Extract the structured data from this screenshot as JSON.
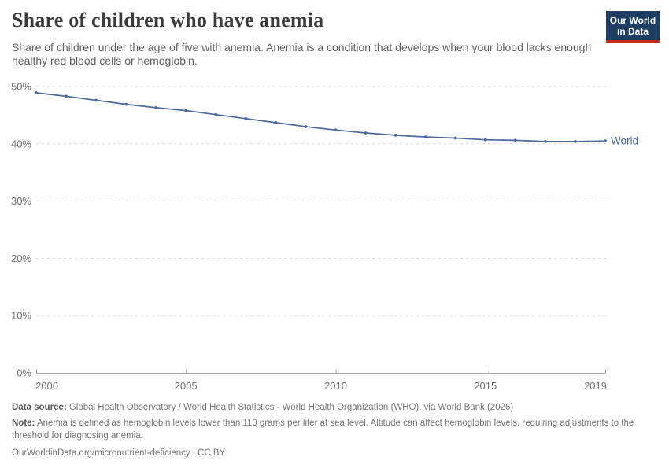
{
  "header": {
    "title": "Share of children who have anemia",
    "subtitle": "Share of children under the age of five with anemia. Anemia is a condition that develops when your blood lacks enough healthy red blood cells or hemoglobin.",
    "logo": {
      "line1": "Our World",
      "line2": "in Data",
      "bg_color": "#1D3D63",
      "accent_color": "#C9291F"
    }
  },
  "chart_data": {
    "type": "line",
    "title": "Share of children who have anemia",
    "xlabel": "",
    "ylabel": "",
    "x": [
      2000,
      2001,
      2002,
      2003,
      2004,
      2005,
      2006,
      2007,
      2008,
      2009,
      2010,
      2011,
      2012,
      2013,
      2014,
      2015,
      2016,
      2017,
      2018,
      2019
    ],
    "series": [
      {
        "name": "World",
        "color": "#4C6A9C",
        "values": [
          48.9,
          48.3,
          47.6,
          46.9,
          46.3,
          45.8,
          45.1,
          44.4,
          43.7,
          43.0,
          42.4,
          41.9,
          41.5,
          41.2,
          41.0,
          40.7,
          40.6,
          40.4,
          40.4,
          40.5
        ]
      }
    ],
    "ylim": [
      0,
      50
    ],
    "yticks": [
      0,
      10,
      20,
      30,
      40,
      50
    ],
    "ytick_suffix": "%",
    "xticks": [
      2000,
      2005,
      2010,
      2015,
      2019
    ],
    "grid": "horizontal-dashed",
    "legend_position": "line-end"
  },
  "footer": {
    "datasource_label": "Data source:",
    "datasource_text": " Global Health Observatory / World Health Statistics - World Health Organization (WHO), via World Bank (2026)",
    "note_label": "Note:",
    "note_text": " Anemia is defined as hemoglobin levels lower than 110 grams per liter at sea level. Altitude can affect hemoglobin levels, requiring adjustments to the threshold for diagnosing anemia.",
    "url": "OurWorldinData.org/micronutrient-deficiency | CC BY"
  }
}
